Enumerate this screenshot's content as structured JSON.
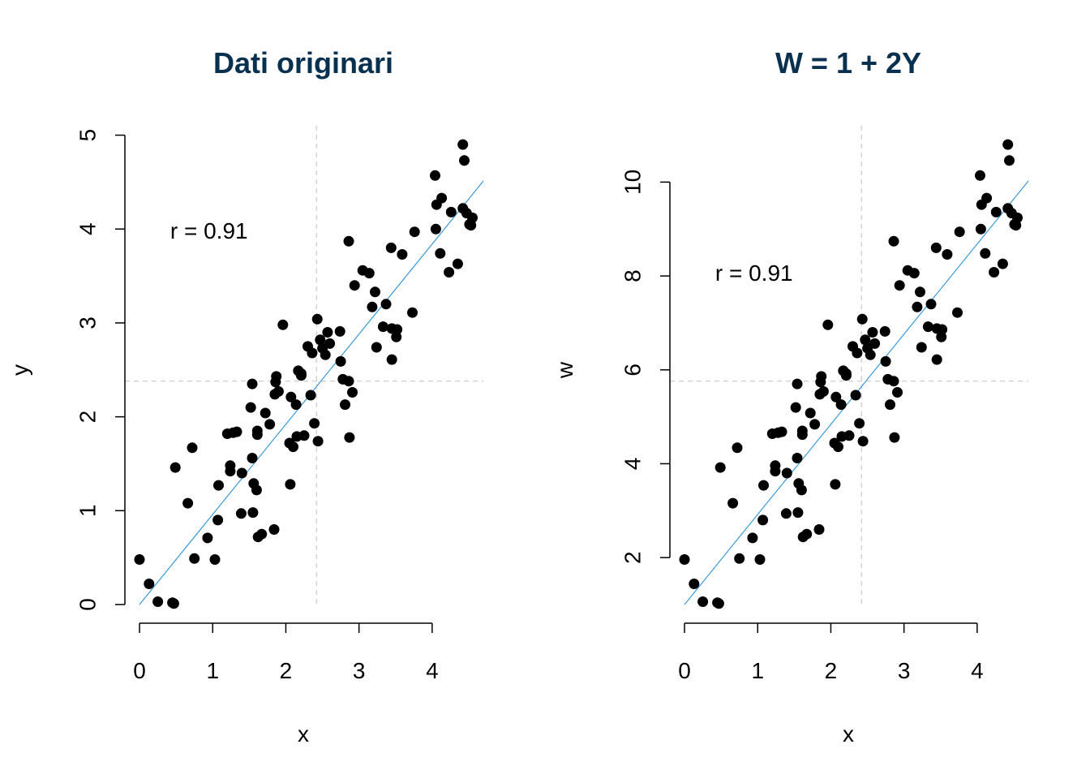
{
  "colors": {
    "title": "#08304F",
    "points": "#000000",
    "fit_line": "#3A9AD9",
    "mean_lines": "#D3D3D3",
    "axes": "#000000",
    "background": "#FFFFFF"
  },
  "chart_data": [
    {
      "type": "scatter",
      "title": "Dati originari",
      "xlabel": "x",
      "ylabel": "y",
      "xlim": [
        -0.2,
        4.7
      ],
      "ylim": [
        0,
        5.1
      ],
      "x_ticks": [
        0,
        1,
        2,
        3,
        4
      ],
      "y_ticks": [
        0,
        1,
        2,
        3,
        4,
        5
      ],
      "x_tick_labels": [
        "0",
        "1",
        "2",
        "3",
        "4"
      ],
      "y_tick_labels": [
        "0",
        "1",
        "2",
        "3",
        "4",
        "5"
      ],
      "annotation": {
        "text": "r = 0.91",
        "x": 0.95,
        "y": 3.9
      },
      "mean_x": 2.42,
      "mean_y": 2.38,
      "regression": {
        "intercept": 0.0,
        "slope": 0.96
      },
      "points": [
        [
          0.0,
          0.48
        ],
        [
          0.13,
          0.22
        ],
        [
          0.25,
          0.03
        ],
        [
          0.45,
          0.02
        ],
        [
          0.47,
          0.01
        ],
        [
          0.49,
          1.46
        ],
        [
          0.66,
          1.08
        ],
        [
          0.72,
          1.67
        ],
        [
          0.75,
          0.49
        ],
        [
          0.93,
          0.71
        ],
        [
          1.03,
          0.48
        ],
        [
          1.07,
          0.9
        ],
        [
          1.08,
          1.27
        ],
        [
          1.2,
          1.82
        ],
        [
          1.24,
          1.42
        ],
        [
          1.24,
          1.48
        ],
        [
          1.28,
          1.83
        ],
        [
          1.33,
          1.84
        ],
        [
          1.39,
          0.97
        ],
        [
          1.4,
          1.4
        ],
        [
          1.52,
          2.1
        ],
        [
          1.54,
          1.56
        ],
        [
          1.54,
          2.35
        ],
        [
          1.55,
          0.98
        ],
        [
          1.56,
          1.29
        ],
        [
          1.6,
          1.22
        ],
        [
          1.61,
          1.85
        ],
        [
          1.61,
          1.81
        ],
        [
          1.62,
          0.72
        ],
        [
          1.67,
          0.75
        ],
        [
          1.72,
          2.04
        ],
        [
          1.78,
          1.92
        ],
        [
          1.84,
          0.8
        ],
        [
          1.85,
          2.24
        ],
        [
          1.86,
          2.37
        ],
        [
          1.87,
          2.43
        ],
        [
          1.9,
          2.27
        ],
        [
          1.96,
          2.98
        ],
        [
          2.05,
          1.72
        ],
        [
          2.06,
          1.28
        ],
        [
          2.07,
          2.21
        ],
        [
          2.1,
          1.68
        ],
        [
          2.14,
          2.13
        ],
        [
          2.15,
          1.79
        ],
        [
          2.17,
          2.49
        ],
        [
          2.21,
          2.44
        ],
        [
          2.21,
          2.46
        ],
        [
          2.25,
          1.8
        ],
        [
          2.3,
          2.75
        ],
        [
          2.34,
          2.23
        ],
        [
          2.36,
          2.68
        ],
        [
          2.39,
          1.93
        ],
        [
          2.43,
          3.04
        ],
        [
          2.44,
          1.74
        ],
        [
          2.47,
          2.82
        ],
        [
          2.5,
          2.73
        ],
        [
          2.54,
          2.66
        ],
        [
          2.57,
          2.9
        ],
        [
          2.6,
          2.78
        ],
        [
          2.74,
          2.91
        ],
        [
          2.75,
          2.59
        ],
        [
          2.78,
          2.4
        ],
        [
          2.81,
          2.13
        ],
        [
          2.86,
          3.87
        ],
        [
          2.86,
          2.38
        ],
        [
          2.87,
          1.78
        ],
        [
          2.91,
          2.26
        ],
        [
          2.94,
          3.4
        ],
        [
          3.05,
          3.56
        ],
        [
          3.14,
          3.53
        ],
        [
          3.18,
          3.17
        ],
        [
          3.22,
          3.33
        ],
        [
          3.24,
          2.74
        ],
        [
          3.33,
          2.96
        ],
        [
          3.37,
          3.2
        ],
        [
          3.44,
          3.8
        ],
        [
          3.45,
          2.61
        ],
        [
          3.45,
          2.94
        ],
        [
          3.51,
          2.85
        ],
        [
          3.52,
          2.93
        ],
        [
          3.59,
          3.73
        ],
        [
          3.73,
          3.11
        ],
        [
          3.76,
          3.97
        ],
        [
          4.04,
          4.57
        ],
        [
          4.05,
          4.0
        ],
        [
          4.06,
          4.26
        ],
        [
          4.11,
          3.74
        ],
        [
          4.13,
          4.33
        ],
        [
          4.23,
          3.54
        ],
        [
          4.26,
          4.18
        ],
        [
          4.35,
          3.63
        ],
        [
          4.42,
          4.9
        ],
        [
          4.42,
          4.22
        ],
        [
          4.44,
          4.73
        ],
        [
          4.47,
          4.17
        ],
        [
          4.51,
          4.05
        ],
        [
          4.53,
          4.04
        ],
        [
          4.55,
          4.12
        ]
      ]
    },
    {
      "type": "scatter",
      "title": "W = 1 + 2Y",
      "xlabel": "x",
      "ylabel": "w",
      "xlim": [
        -0.2,
        4.7
      ],
      "ylim": [
        1.0,
        11.2
      ],
      "x_ticks": [
        0,
        1,
        2,
        3,
        4
      ],
      "y_ticks": [
        2,
        4,
        6,
        8,
        10
      ],
      "x_tick_labels": [
        "0",
        "1",
        "2",
        "3",
        "4"
      ],
      "y_tick_labels": [
        "2",
        "4",
        "6",
        "8",
        "10"
      ],
      "annotation": {
        "text": "r = 0.91",
        "x": 0.95,
        "y": 7.9
      },
      "mean_x": 2.42,
      "mean_y": 5.76,
      "regression": {
        "intercept": 1.0,
        "slope": 1.92
      },
      "points": [
        [
          0.0,
          1.96
        ],
        [
          0.13,
          1.44
        ],
        [
          0.25,
          1.06
        ],
        [
          0.45,
          1.04
        ],
        [
          0.47,
          1.02
        ],
        [
          0.49,
          3.92
        ],
        [
          0.66,
          3.16
        ],
        [
          0.72,
          4.34
        ],
        [
          0.75,
          1.98
        ],
        [
          0.93,
          2.42
        ],
        [
          1.03,
          1.96
        ],
        [
          1.07,
          2.8
        ],
        [
          1.08,
          3.54
        ],
        [
          1.2,
          4.64
        ],
        [
          1.24,
          3.84
        ],
        [
          1.24,
          3.96
        ],
        [
          1.28,
          4.66
        ],
        [
          1.33,
          4.68
        ],
        [
          1.39,
          2.94
        ],
        [
          1.4,
          3.8
        ],
        [
          1.52,
          5.2
        ],
        [
          1.54,
          4.12
        ],
        [
          1.54,
          5.7
        ],
        [
          1.55,
          2.96
        ],
        [
          1.56,
          3.58
        ],
        [
          1.6,
          3.44
        ],
        [
          1.61,
          4.7
        ],
        [
          1.61,
          4.62
        ],
        [
          1.62,
          2.44
        ],
        [
          1.67,
          2.5
        ],
        [
          1.72,
          5.08
        ],
        [
          1.78,
          4.84
        ],
        [
          1.84,
          2.6
        ],
        [
          1.85,
          5.48
        ],
        [
          1.86,
          5.74
        ],
        [
          1.87,
          5.86
        ],
        [
          1.9,
          5.54
        ],
        [
          1.96,
          6.96
        ],
        [
          2.05,
          4.44
        ],
        [
          2.06,
          3.56
        ],
        [
          2.07,
          5.42
        ],
        [
          2.1,
          4.36
        ],
        [
          2.14,
          5.26
        ],
        [
          2.15,
          4.58
        ],
        [
          2.17,
          5.98
        ],
        [
          2.21,
          5.88
        ],
        [
          2.21,
          5.92
        ],
        [
          2.25,
          4.6
        ],
        [
          2.3,
          6.5
        ],
        [
          2.34,
          5.46
        ],
        [
          2.36,
          6.36
        ],
        [
          2.39,
          4.86
        ],
        [
          2.43,
          7.08
        ],
        [
          2.44,
          4.48
        ],
        [
          2.47,
          6.64
        ],
        [
          2.5,
          6.46
        ],
        [
          2.54,
          6.32
        ],
        [
          2.57,
          6.8
        ],
        [
          2.6,
          6.56
        ],
        [
          2.74,
          6.82
        ],
        [
          2.75,
          6.18
        ],
        [
          2.78,
          5.8
        ],
        [
          2.81,
          5.26
        ],
        [
          2.86,
          8.74
        ],
        [
          2.86,
          5.76
        ],
        [
          2.87,
          4.56
        ],
        [
          2.91,
          5.52
        ],
        [
          2.94,
          7.8
        ],
        [
          3.05,
          8.12
        ],
        [
          3.14,
          8.06
        ],
        [
          3.18,
          7.34
        ],
        [
          3.22,
          7.66
        ],
        [
          3.24,
          6.48
        ],
        [
          3.33,
          6.92
        ],
        [
          3.37,
          7.4
        ],
        [
          3.44,
          8.6
        ],
        [
          3.45,
          6.22
        ],
        [
          3.45,
          6.88
        ],
        [
          3.51,
          6.7
        ],
        [
          3.52,
          6.86
        ],
        [
          3.59,
          8.46
        ],
        [
          3.73,
          7.22
        ],
        [
          3.76,
          8.94
        ],
        [
          4.04,
          10.14
        ],
        [
          4.05,
          9.0
        ],
        [
          4.06,
          9.52
        ],
        [
          4.11,
          8.48
        ],
        [
          4.13,
          9.66
        ],
        [
          4.23,
          8.08
        ],
        [
          4.26,
          9.36
        ],
        [
          4.35,
          8.26
        ],
        [
          4.42,
          10.8
        ],
        [
          4.42,
          9.44
        ],
        [
          4.44,
          10.46
        ],
        [
          4.47,
          9.34
        ],
        [
          4.51,
          9.1
        ],
        [
          4.53,
          9.08
        ],
        [
          4.55,
          9.24
        ]
      ]
    }
  ]
}
